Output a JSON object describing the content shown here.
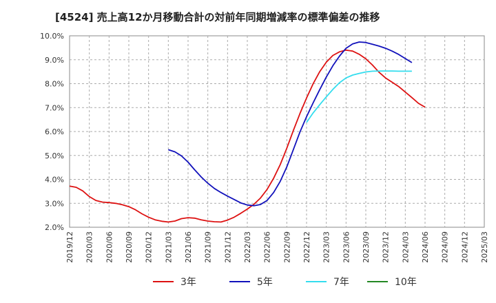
{
  "chart_data": {
    "type": "line",
    "title": "[4524]  売上高12か月移動合計の対前年同期増減率の標準偏差の推移",
    "xlabel": "",
    "ylabel": "",
    "ylim": [
      2.0,
      10.0
    ],
    "y_ticks": [
      "2.0%",
      "3.0%",
      "4.0%",
      "5.0%",
      "6.0%",
      "7.0%",
      "8.0%",
      "9.0%",
      "10.0%"
    ],
    "x_ticks": [
      "2019/12",
      "2020/03",
      "2020/06",
      "2020/09",
      "2020/12",
      "2021/03",
      "2021/06",
      "2021/09",
      "2021/12",
      "2022/03",
      "2022/06",
      "2022/09",
      "2022/12",
      "2023/03",
      "2023/06",
      "2023/09",
      "2023/12",
      "2024/03",
      "2024/06",
      "2024/09",
      "2024/12",
      "2025/03"
    ],
    "grid": true,
    "legend_position": "bottom",
    "colors": {
      "3年": "#dd1111",
      "5年": "#1111bb",
      "7年": "#33ddee",
      "10年": "#228822"
    },
    "series": [
      {
        "name": "3年",
        "points": [
          [
            "2019/12",
            3.72
          ],
          [
            "2020/01",
            3.67
          ],
          [
            "2020/02",
            3.52
          ],
          [
            "2020/03",
            3.28
          ],
          [
            "2020/04",
            3.12
          ],
          [
            "2020/05",
            3.05
          ],
          [
            "2020/06",
            3.03
          ],
          [
            "2020/07",
            3.0
          ],
          [
            "2020/08",
            2.94
          ],
          [
            "2020/09",
            2.86
          ],
          [
            "2020/10",
            2.73
          ],
          [
            "2020/11",
            2.56
          ],
          [
            "2020/12",
            2.42
          ],
          [
            "2021/01",
            2.31
          ],
          [
            "2021/02",
            2.25
          ],
          [
            "2021/03",
            2.22
          ],
          [
            "2021/04",
            2.26
          ],
          [
            "2021/05",
            2.36
          ],
          [
            "2021/06",
            2.4
          ],
          [
            "2021/07",
            2.38
          ],
          [
            "2021/08",
            2.31
          ],
          [
            "2021/09",
            2.26
          ],
          [
            "2021/10",
            2.23
          ],
          [
            "2021/11",
            2.22
          ],
          [
            "2021/12",
            2.3
          ],
          [
            "2022/01",
            2.42
          ],
          [
            "2022/02",
            2.58
          ],
          [
            "2022/03",
            2.76
          ],
          [
            "2022/04",
            2.96
          ],
          [
            "2022/05",
            3.22
          ],
          [
            "2022/06",
            3.58
          ],
          [
            "2022/07",
            4.05
          ],
          [
            "2022/08",
            4.62
          ],
          [
            "2022/09",
            5.3
          ],
          [
            "2022/10",
            6.05
          ],
          [
            "2022/11",
            6.75
          ],
          [
            "2022/12",
            7.4
          ],
          [
            "2023/01",
            8.0
          ],
          [
            "2023/02",
            8.5
          ],
          [
            "2023/03",
            8.9
          ],
          [
            "2023/04",
            9.18
          ],
          [
            "2023/05",
            9.33
          ],
          [
            "2023/06",
            9.4
          ],
          [
            "2023/07",
            9.36
          ],
          [
            "2023/08",
            9.23
          ],
          [
            "2023/09",
            9.04
          ],
          [
            "2023/10",
            8.78
          ],
          [
            "2023/11",
            8.48
          ],
          [
            "2023/12",
            8.24
          ],
          [
            "2024/01",
            8.06
          ],
          [
            "2024/02",
            7.88
          ],
          [
            "2024/03",
            7.65
          ],
          [
            "2024/04",
            7.42
          ],
          [
            "2024/05",
            7.18
          ],
          [
            "2024/06",
            7.02
          ]
        ]
      },
      {
        "name": "5年",
        "points": [
          [
            "2021/03",
            5.24
          ],
          [
            "2021/04",
            5.15
          ],
          [
            "2021/05",
            4.98
          ],
          [
            "2021/06",
            4.72
          ],
          [
            "2021/07",
            4.4
          ],
          [
            "2021/08",
            4.1
          ],
          [
            "2021/09",
            3.84
          ],
          [
            "2021/10",
            3.62
          ],
          [
            "2021/11",
            3.45
          ],
          [
            "2021/12",
            3.3
          ],
          [
            "2022/01",
            3.16
          ],
          [
            "2022/02",
            3.02
          ],
          [
            "2022/03",
            2.93
          ],
          [
            "2022/04",
            2.9
          ],
          [
            "2022/05",
            2.95
          ],
          [
            "2022/06",
            3.12
          ],
          [
            "2022/07",
            3.45
          ],
          [
            "2022/08",
            3.92
          ],
          [
            "2022/09",
            4.52
          ],
          [
            "2022/10",
            5.25
          ],
          [
            "2022/11",
            5.98
          ],
          [
            "2022/12",
            6.62
          ],
          [
            "2023/01",
            7.2
          ],
          [
            "2023/02",
            7.75
          ],
          [
            "2023/03",
            8.28
          ],
          [
            "2023/04",
            8.75
          ],
          [
            "2023/05",
            9.15
          ],
          [
            "2023/06",
            9.48
          ],
          [
            "2023/07",
            9.66
          ],
          [
            "2023/08",
            9.74
          ],
          [
            "2023/09",
            9.72
          ],
          [
            "2023/10",
            9.65
          ],
          [
            "2023/11",
            9.57
          ],
          [
            "2023/12",
            9.48
          ],
          [
            "2024/01",
            9.36
          ],
          [
            "2024/02",
            9.22
          ],
          [
            "2024/03",
            9.05
          ],
          [
            "2024/04",
            8.88
          ]
        ]
      },
      {
        "name": "7年",
        "points": [
          [
            "2022/12",
            6.38
          ],
          [
            "2023/01",
            6.78
          ],
          [
            "2023/02",
            7.12
          ],
          [
            "2023/03",
            7.45
          ],
          [
            "2023/04",
            7.76
          ],
          [
            "2023/05",
            8.04
          ],
          [
            "2023/06",
            8.24
          ],
          [
            "2023/07",
            8.36
          ],
          [
            "2023/08",
            8.43
          ],
          [
            "2023/09",
            8.49
          ],
          [
            "2023/10",
            8.52
          ],
          [
            "2023/11",
            8.53
          ],
          [
            "2023/12",
            8.53
          ],
          [
            "2024/01",
            8.53
          ],
          [
            "2024/02",
            8.52
          ],
          [
            "2024/03",
            8.52
          ],
          [
            "2024/04",
            8.52
          ]
        ]
      },
      {
        "name": "10年",
        "points": []
      }
    ]
  }
}
